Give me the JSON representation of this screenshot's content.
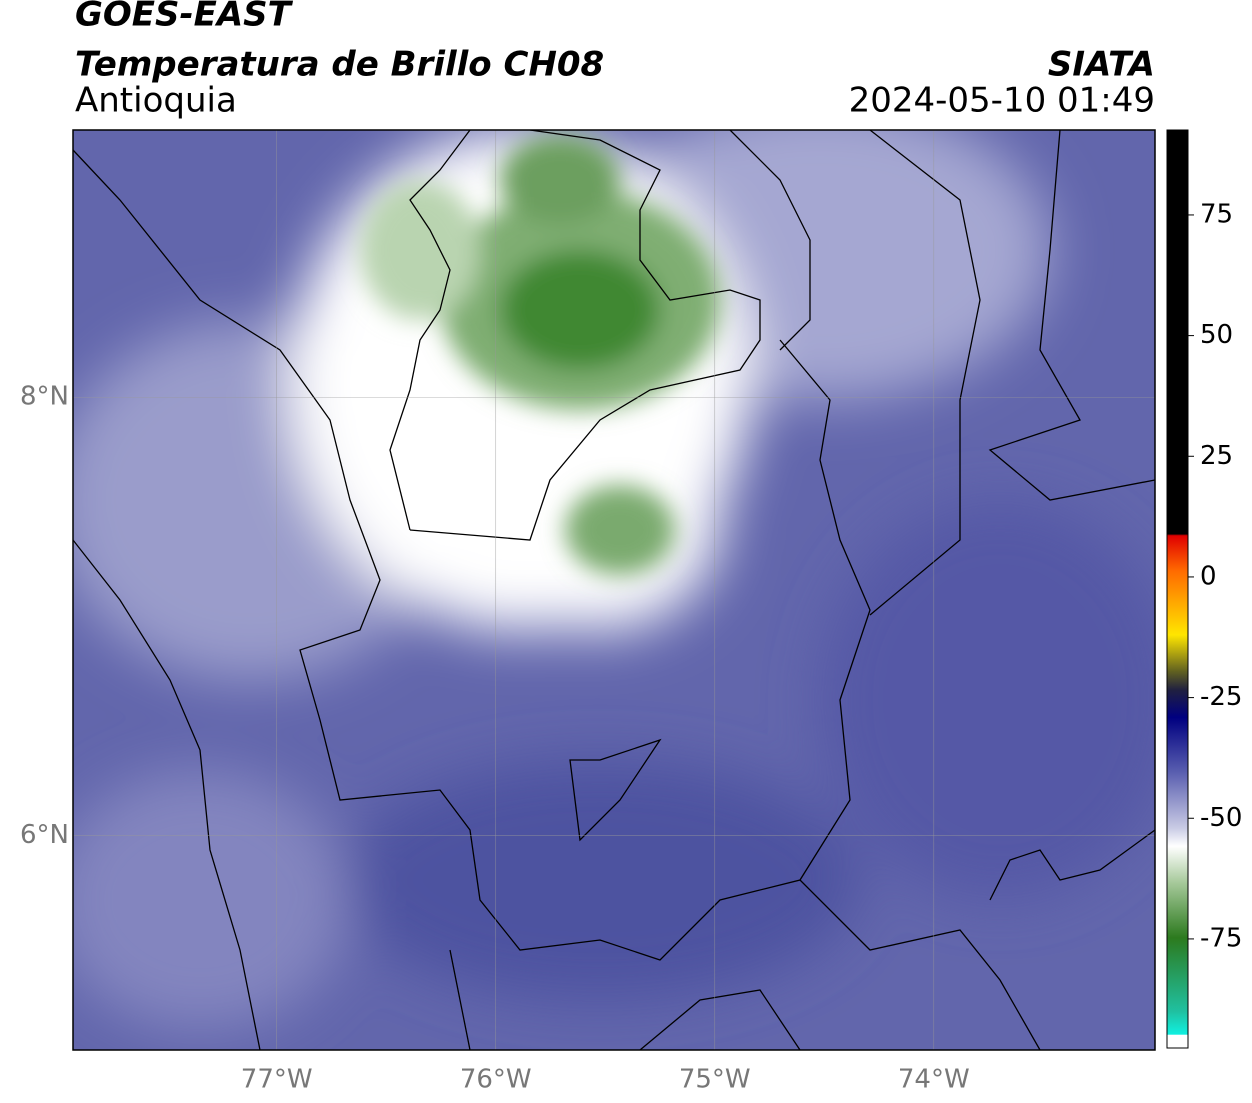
{
  "header": {
    "title": "GOES-EAST",
    "subtitle": "Temperatura de Brillo CH08",
    "region": "Antioquia",
    "source": "SIATA",
    "timestamp": "2024-05-10 01:49"
  },
  "map": {
    "xlim": [
      -77.93,
      -72.99
    ],
    "ylim": [
      5.02,
      9.22
    ],
    "xticks": [
      {
        "value": -77,
        "label": "77°W"
      },
      {
        "value": -76,
        "label": "76°W"
      },
      {
        "value": -75,
        "label": "75°W"
      },
      {
        "value": -74,
        "label": "74°W"
      }
    ],
    "yticks": [
      {
        "value": 6,
        "label": "6°N"
      },
      {
        "value": 8,
        "label": "8°N"
      }
    ],
    "grid": true
  },
  "colorbar": {
    "ylim": [
      -97.6,
      92.6
    ],
    "yticks": [
      -75,
      -50,
      -25,
      0,
      25,
      50,
      75
    ]
  }
}
